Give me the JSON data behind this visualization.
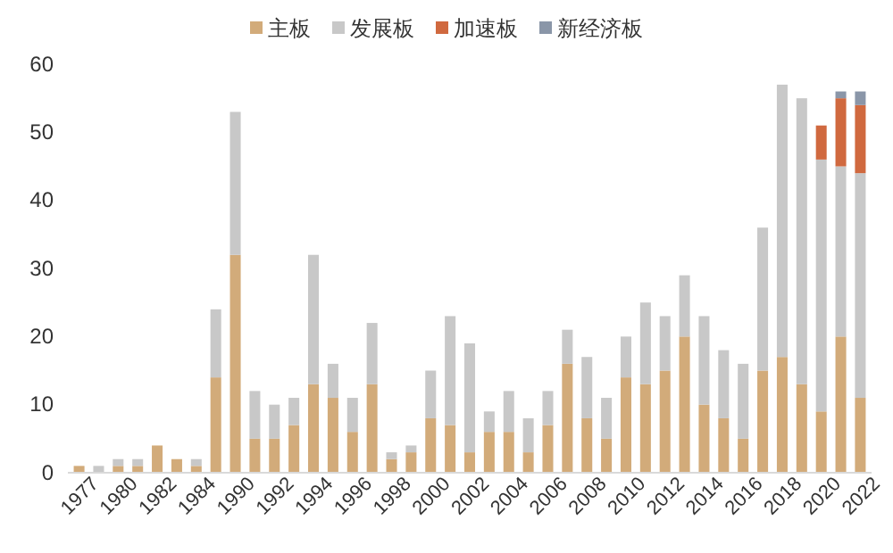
{
  "chart_data": {
    "type": "bar",
    "stacked": true,
    "legend": "top",
    "grid": false,
    "categories": [
      "1977",
      null,
      "1980",
      null,
      "1982",
      null,
      "1984",
      null,
      "1990",
      null,
      "1992",
      null,
      "1994",
      null,
      "1996",
      null,
      "1998",
      null,
      "2000",
      null,
      "2002",
      null,
      "2004",
      null,
      "2006",
      null,
      "2008",
      null,
      "2010",
      null,
      "2012",
      null,
      "2014",
      null,
      "2016",
      null,
      "2018",
      null,
      "2020",
      null,
      "2022"
    ],
    "ylim": [
      0,
      60
    ],
    "yticks": [
      0,
      10,
      20,
      30,
      40,
      50,
      60
    ],
    "series": [
      {
        "name": "主板",
        "color": "#d2ab7a",
        "values": [
          1,
          0,
          1,
          1,
          4,
          2,
          1,
          14,
          32,
          5,
          5,
          7,
          13,
          11,
          6,
          13,
          2,
          3,
          8,
          7,
          3,
          6,
          6,
          3,
          7,
          16,
          8,
          5,
          14,
          13,
          15,
          20,
          10,
          8,
          5,
          15,
          17,
          13,
          9,
          20,
          11
        ]
      },
      {
        "name": "发展板",
        "color": "#c8c8c8",
        "values": [
          0,
          1,
          1,
          1,
          0,
          0,
          1,
          10,
          21,
          7,
          5,
          4,
          19,
          5,
          5,
          9,
          1,
          1,
          7,
          16,
          16,
          3,
          6,
          5,
          5,
          5,
          9,
          6,
          6,
          12,
          8,
          9,
          13,
          10,
          11,
          21,
          40,
          42,
          37,
          25,
          33
        ]
      },
      {
        "name": "加速板",
        "color": "#d0693f",
        "values": [
          0,
          0,
          0,
          0,
          0,
          0,
          0,
          0,
          0,
          0,
          0,
          0,
          0,
          0,
          0,
          0,
          0,
          0,
          0,
          0,
          0,
          0,
          0,
          0,
          0,
          0,
          0,
          0,
          0,
          0,
          0,
          0,
          0,
          0,
          0,
          0,
          0,
          0,
          5,
          10,
          10
        ]
      },
      {
        "name": "新经济板",
        "color": "#8a96a8",
        "values": [
          0,
          0,
          0,
          0,
          0,
          0,
          0,
          0,
          0,
          0,
          0,
          0,
          0,
          0,
          0,
          0,
          0,
          0,
          0,
          0,
          0,
          0,
          0,
          0,
          0,
          0,
          0,
          0,
          0,
          0,
          0,
          0,
          0,
          0,
          0,
          0,
          0,
          0,
          0,
          1,
          2
        ]
      }
    ]
  }
}
